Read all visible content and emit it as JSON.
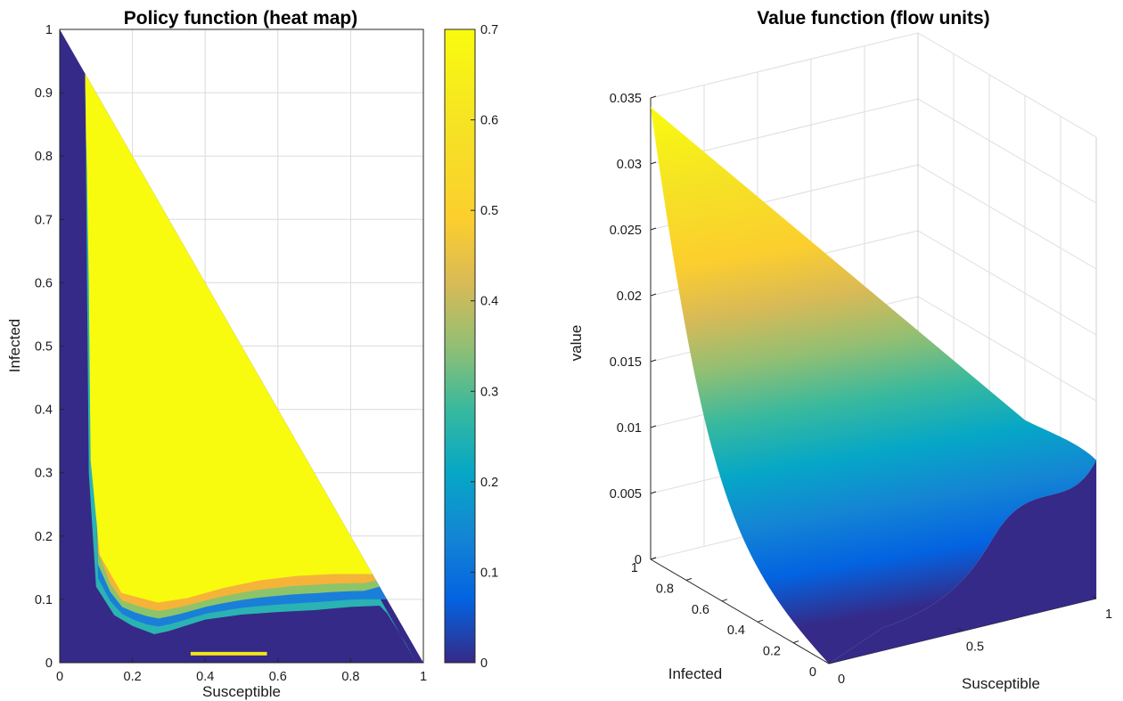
{
  "chart_data": [
    {
      "type": "heatmap",
      "title": "Policy function (heat map)",
      "xlabel": "Susceptible",
      "ylabel": "Infected",
      "xlim": [
        0,
        1
      ],
      "ylim": [
        0,
        1
      ],
      "xticks": [
        "0",
        "0.2",
        "0.4",
        "0.6",
        "0.8",
        "1"
      ],
      "yticks": [
        "0",
        "0.1",
        "0.2",
        "0.3",
        "0.4",
        "0.5",
        "0.6",
        "0.7",
        "0.8",
        "0.9",
        "1"
      ],
      "grid": true,
      "colormap": "parula",
      "colorbar": {
        "range": [
          0,
          0.7
        ],
        "ticks": [
          "0",
          "0.1",
          "0.2",
          "0.3",
          "0.4",
          "0.5",
          "0.6",
          "0.7"
        ]
      },
      "domain": "Susceptible + Infected <= 1",
      "regions": [
        {
          "label": "zero policy (value 0)",
          "value": 0
        },
        {
          "label": "max policy (value 0.7)",
          "value": 0.7
        }
      ],
      "threshold_curve_lower": [
        {
          "x": 0.07,
          "y": 0.93
        },
        {
          "x": 0.075,
          "y": 0.6
        },
        {
          "x": 0.08,
          "y": 0.3
        },
        {
          "x": 0.1,
          "y": 0.12
        },
        {
          "x": 0.15,
          "y": 0.075
        },
        {
          "x": 0.2,
          "y": 0.058
        },
        {
          "x": 0.26,
          "y": 0.045
        },
        {
          "x": 0.3,
          "y": 0.05
        },
        {
          "x": 0.4,
          "y": 0.068
        },
        {
          "x": 0.5,
          "y": 0.076
        },
        {
          "x": 0.6,
          "y": 0.08
        },
        {
          "x": 0.7,
          "y": 0.083
        },
        {
          "x": 0.8,
          "y": 0.088
        },
        {
          "x": 0.88,
          "y": 0.09
        },
        {
          "x": 0.9,
          "y": 0.078
        },
        {
          "x": 0.95,
          "y": 0.032
        },
        {
          "x": 0.98,
          "y": 0.0
        }
      ],
      "threshold_curve_upper": [
        {
          "x": 0.07,
          "y": 0.93
        },
        {
          "x": 0.08,
          "y": 0.6
        },
        {
          "x": 0.085,
          "y": 0.32
        },
        {
          "x": 0.11,
          "y": 0.17
        },
        {
          "x": 0.17,
          "y": 0.11
        },
        {
          "x": 0.27,
          "y": 0.095
        },
        {
          "x": 0.35,
          "y": 0.102
        },
        {
          "x": 0.45,
          "y": 0.118
        },
        {
          "x": 0.55,
          "y": 0.13
        },
        {
          "x": 0.65,
          "y": 0.137
        },
        {
          "x": 0.75,
          "y": 0.14
        },
        {
          "x": 0.86,
          "y": 0.14
        }
      ],
      "annotation_segment": {
        "x": [
          0.36,
          0.57
        ],
        "y": 0.01,
        "value": 0.7
      }
    },
    {
      "type": "surface",
      "title": "Value function (flow units)",
      "xlabel": "Susceptible",
      "ylabel": "Infected",
      "zlabel": "value",
      "xlim": [
        0,
        1
      ],
      "ylim": [
        0,
        1
      ],
      "zlim": [
        0,
        0.035
      ],
      "xticks": [
        "0",
        "0.5",
        "1"
      ],
      "yticks": [
        "0",
        "0.2",
        "0.4",
        "0.6",
        "0.8",
        "1"
      ],
      "zticks": [
        "0",
        "0.005",
        "0.01",
        "0.015",
        "0.02",
        "0.025",
        "0.03",
        "0.035"
      ],
      "grid": true,
      "colormap": "parula",
      "value_at_corners": [
        {
          "susceptible": 0,
          "infected": 1,
          "value": 0.0343
        },
        {
          "susceptible": 0,
          "infected": 0,
          "value": 0
        },
        {
          "susceptible": 1,
          "infected": 0,
          "value": 0.0105
        }
      ]
    }
  ]
}
